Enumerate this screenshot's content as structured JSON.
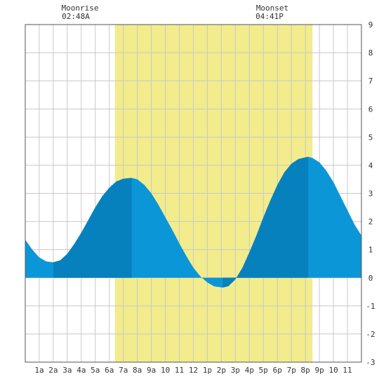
{
  "header": {
    "moonrise": {
      "label": "Moonrise",
      "time": "02:48A"
    },
    "moonset": {
      "label": "Moonset",
      "time": "04:41P"
    }
  },
  "colors": {
    "daylight": "#f2ec8c",
    "water": "#0b96d8",
    "water_dark": "#0681bd",
    "grid": "#c8c8c8",
    "frame": "#555555",
    "background": "#ffffff"
  },
  "chart_data": {
    "type": "area",
    "title": "",
    "xlabel": "",
    "ylabel": "",
    "xlim": [
      0,
      24
    ],
    "ylim": [
      -3,
      9
    ],
    "grid": true,
    "x_ticks": [
      {
        "x": 1,
        "label": "1a"
      },
      {
        "x": 2,
        "label": "2a"
      },
      {
        "x": 3,
        "label": "3a"
      },
      {
        "x": 4,
        "label": "4a"
      },
      {
        "x": 5,
        "label": "5a"
      },
      {
        "x": 6,
        "label": "6a"
      },
      {
        "x": 7,
        "label": "7a"
      },
      {
        "x": 8,
        "label": "8a"
      },
      {
        "x": 9,
        "label": "9a"
      },
      {
        "x": 10,
        "label": "10"
      },
      {
        "x": 11,
        "label": "11"
      },
      {
        "x": 12,
        "label": "12"
      },
      {
        "x": 13,
        "label": "1p"
      },
      {
        "x": 14,
        "label": "2p"
      },
      {
        "x": 15,
        "label": "3p"
      },
      {
        "x": 16,
        "label": "4p"
      },
      {
        "x": 17,
        "label": "5p"
      },
      {
        "x": 18,
        "label": "6p"
      },
      {
        "x": 19,
        "label": "7p"
      },
      {
        "x": 20,
        "label": "8p"
      },
      {
        "x": 21,
        "label": "9p"
      },
      {
        "x": 22,
        "label": "10"
      },
      {
        "x": 23,
        "label": "11"
      }
    ],
    "y_ticks": [
      9,
      8,
      7,
      6,
      5,
      4,
      3,
      2,
      1,
      0,
      -1,
      -2,
      -3
    ],
    "daylight": {
      "start": 6.4,
      "end": 20.5
    },
    "moonrise_hour": 2.8,
    "moonset_hour": 16.68,
    "extremes": [
      {
        "type": "low",
        "x": 2.0,
        "y": 0.55
      },
      {
        "type": "high",
        "x": 7.6,
        "y": 3.55
      },
      {
        "type": "low",
        "x": 14.1,
        "y": -0.35
      },
      {
        "type": "high",
        "x": 20.2,
        "y": 4.3
      }
    ],
    "series": [
      {
        "values": [
          [
            0,
            1.35
          ],
          [
            0.5,
            1.0
          ],
          [
            1,
            0.72
          ],
          [
            1.5,
            0.58
          ],
          [
            2,
            0.55
          ],
          [
            2.5,
            0.62
          ],
          [
            3,
            0.85
          ],
          [
            3.5,
            1.2
          ],
          [
            4,
            1.6
          ],
          [
            4.5,
            2.05
          ],
          [
            5,
            2.5
          ],
          [
            5.5,
            2.9
          ],
          [
            6,
            3.2
          ],
          [
            6.5,
            3.42
          ],
          [
            7,
            3.52
          ],
          [
            7.6,
            3.55
          ],
          [
            8,
            3.5
          ],
          [
            8.5,
            3.3
          ],
          [
            9,
            3.0
          ],
          [
            9.5,
            2.6
          ],
          [
            10,
            2.15
          ],
          [
            10.5,
            1.7
          ],
          [
            11,
            1.22
          ],
          [
            11.5,
            0.77
          ],
          [
            12,
            0.36
          ],
          [
            12.5,
            0.05
          ],
          [
            13,
            -0.17
          ],
          [
            13.5,
            -0.31
          ],
          [
            14.1,
            -0.35
          ],
          [
            14.5,
            -0.3
          ],
          [
            15,
            -0.06
          ],
          [
            15.5,
            0.35
          ],
          [
            16,
            0.9
          ],
          [
            16.5,
            1.5
          ],
          [
            17,
            2.15
          ],
          [
            17.5,
            2.75
          ],
          [
            18,
            3.3
          ],
          [
            18.5,
            3.75
          ],
          [
            19,
            4.05
          ],
          [
            19.5,
            4.22
          ],
          [
            20.2,
            4.3
          ],
          [
            20.5,
            4.26
          ],
          [
            21,
            4.1
          ],
          [
            21.5,
            3.8
          ],
          [
            22,
            3.4
          ],
          [
            22.5,
            2.9
          ],
          [
            23,
            2.4
          ],
          [
            23.5,
            1.9
          ],
          [
            24,
            1.5
          ]
        ]
      }
    ]
  }
}
